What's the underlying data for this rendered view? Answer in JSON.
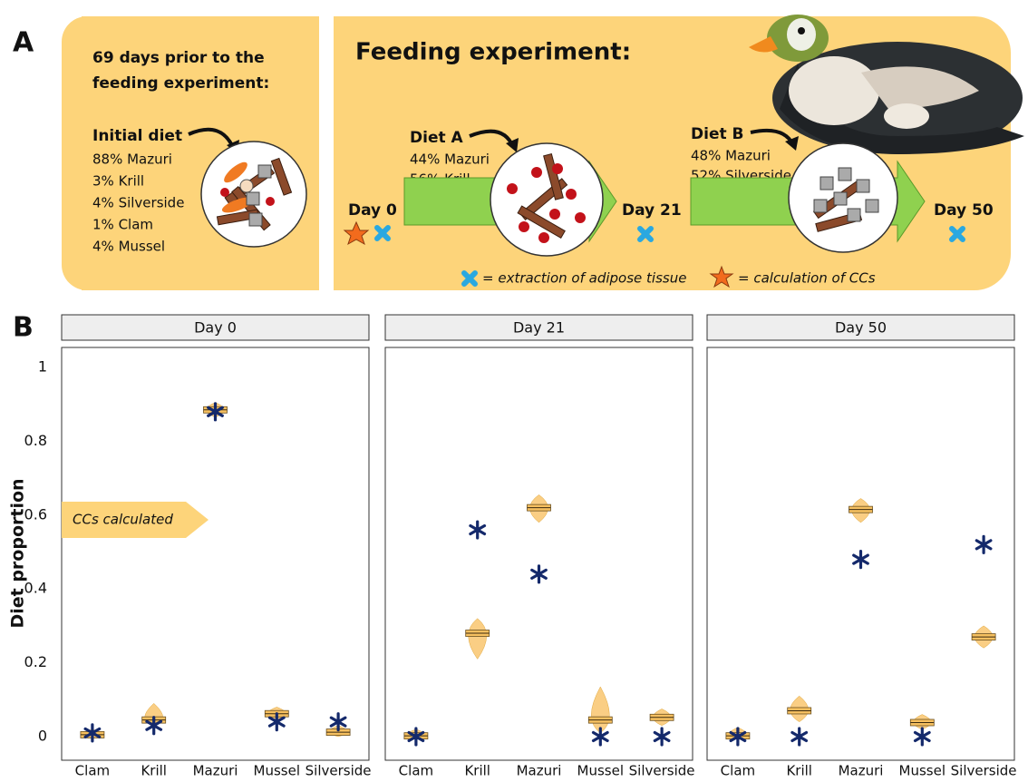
{
  "panel_labels": [
    "A",
    "B"
  ],
  "panel_a": {
    "left": {
      "title_lines": [
        "69 days prior to the",
        "feeding experiment:"
      ],
      "diet_title": "Initial diet",
      "diet_items": [
        "88% Mazuri",
        "3% Krill",
        "4% Silverside",
        "1% Clam",
        "4% Mussel"
      ]
    },
    "right": {
      "title": "Feeding experiment:",
      "diet_a": {
        "title": "Diet A",
        "items": [
          "44% Mazuri",
          "56% Krill"
        ]
      },
      "diet_b": {
        "title": "Diet B",
        "items": [
          "48% Mazuri",
          "52% Silverside"
        ]
      },
      "days": [
        "Day 0",
        "Day 21",
        "Day 50"
      ],
      "legend": [
        "= extraction of adipose tissue",
        "= calculation of CCs"
      ]
    }
  },
  "chart_data": [
    {
      "type": "violin",
      "title": "Day 0",
      "ylabel": "Diet proportion",
      "annotation": "CCs calculated",
      "categories": [
        "Clam",
        "Krill",
        "Mazuri",
        "Mussel",
        "Silverside"
      ],
      "values": [
        0.005,
        0.045,
        0.885,
        0.062,
        0.012
      ],
      "min": [
        0,
        0.03,
        0.865,
        0.045,
        0
      ],
      "max": [
        0.02,
        0.09,
        0.905,
        0.08,
        0.03
      ],
      "true_values": [
        0.01,
        0.03,
        0.88,
        0.04,
        0.04
      ],
      "ylim": [
        -0.064,
        1.054
      ],
      "yticks": [
        0,
        0.2,
        0.4,
        0.6,
        0.8,
        1
      ]
    },
    {
      "type": "violin",
      "title": "Day 21",
      "categories": [
        "Clam",
        "Krill",
        "Mazuri",
        "Mussel",
        "Silverside"
      ],
      "values": [
        0.002,
        0.28,
        0.62,
        0.045,
        0.052
      ],
      "min": [
        0,
        0.21,
        0.58,
        0.01,
        0.03
      ],
      "max": [
        0.02,
        0.32,
        0.655,
        0.135,
        0.075
      ],
      "true_values": [
        0,
        0.56,
        0.44,
        0,
        0
      ],
      "ylim": [
        -0.064,
        1.054
      ]
    },
    {
      "type": "violin",
      "title": "Day 50",
      "categories": [
        "Clam",
        "Krill",
        "Mazuri",
        "Mussel",
        "Silverside"
      ],
      "values": [
        0.002,
        0.07,
        0.615,
        0.038,
        0.27
      ],
      "min": [
        0,
        0.04,
        0.58,
        0.02,
        0.24
      ],
      "max": [
        0.025,
        0.11,
        0.645,
        0.06,
        0.3
      ],
      "true_values": [
        0,
        0,
        0.48,
        0,
        0.52
      ],
      "ylim": [
        -0.064,
        1.054
      ]
    }
  ]
}
